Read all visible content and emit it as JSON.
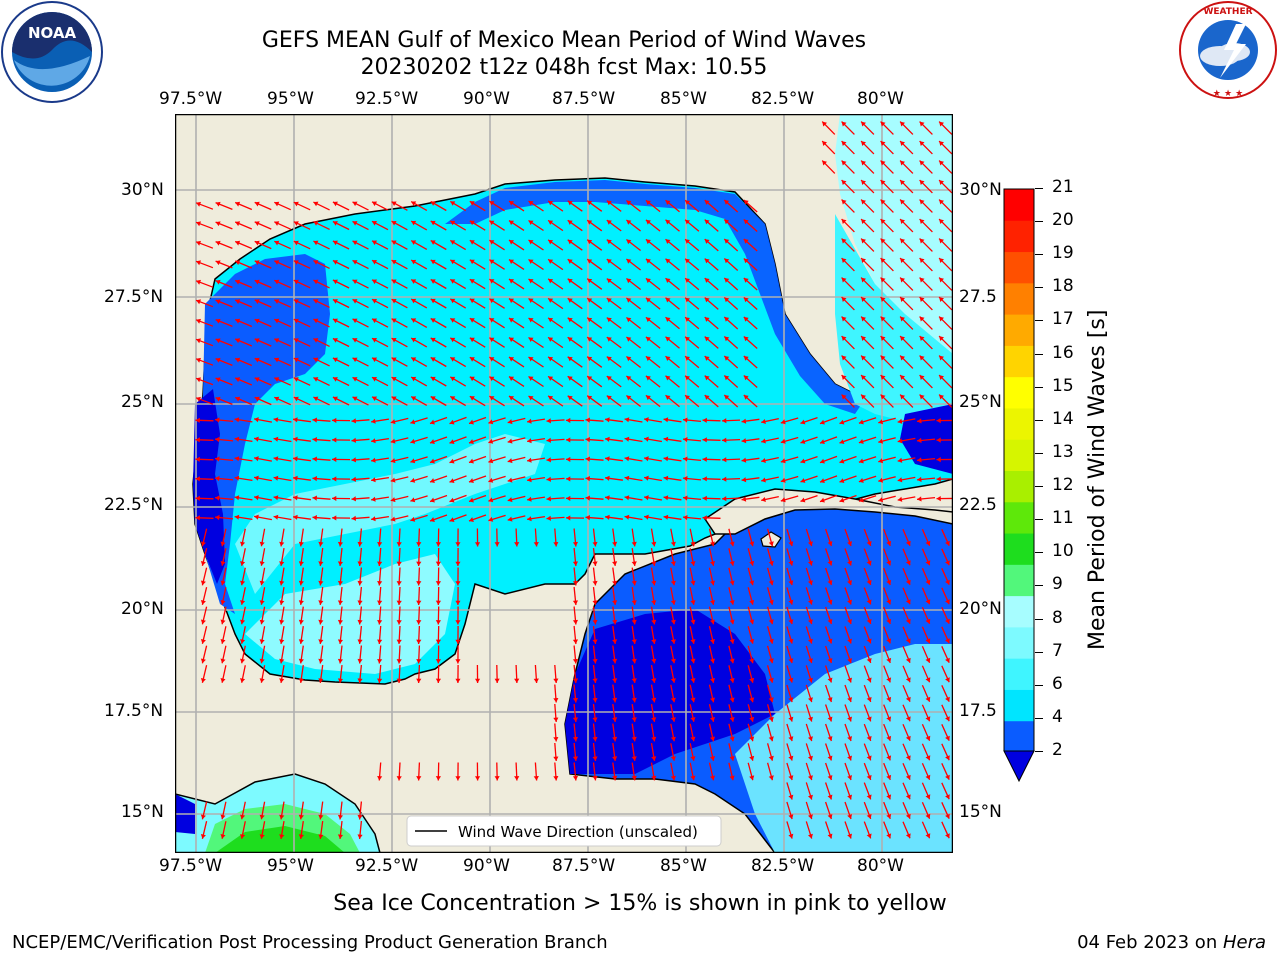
{
  "header": {
    "title_line1": "GEFS MEAN Gulf of Mexico Mean Period of Wind Waves",
    "title_line2": "20230202 t12z 048h fcst   Max: 10.55"
  },
  "logos": {
    "left": {
      "name": "NOAA",
      "ring_text": "NATIONAL OCEANIC AND ATMOSPHERIC ADMINISTRATION · U.S. DEPARTMENT OF COMMERCE",
      "icon": "noaa-logo"
    },
    "right": {
      "ring_text": "NATIONAL WEATHER SERVICE",
      "icon": "nws-logo"
    }
  },
  "map": {
    "lon_ticks": [
      "97.5°W",
      "95°W",
      "92.5°W",
      "90°W",
      "87.5°W",
      "85°W",
      "82.5°W",
      "80°W"
    ],
    "lat_ticks_left": [
      "30°N",
      "27.5°N",
      "25°N",
      "22.5°N",
      "20°N",
      "17.5°N",
      "15°N"
    ],
    "lat_ticks_right": [
      "30°N",
      "27.5",
      "25°N",
      "22.5",
      "20°N",
      "17.5",
      "15°N"
    ],
    "legend_label": "Wind Wave Direction (unscaled)",
    "colors": {
      "land": "#efecdc",
      "coast": "#000000",
      "arrow": "#ff0000",
      "grid": "#b0b0b0"
    }
  },
  "colorbar": {
    "label": "Mean Period of Wind Waves [s]",
    "ticks": [
      "2",
      "4",
      "6",
      "7",
      "8",
      "9",
      "10",
      "11",
      "12",
      "13",
      "14",
      "15",
      "16",
      "17",
      "18",
      "19",
      "20",
      "21"
    ],
    "colors": [
      "#0a5cff",
      "#00e5ff",
      "#3ff5ff",
      "#7dfaff",
      "#a7fdff",
      "#52f77b",
      "#1edd1e",
      "#5ee80a",
      "#a9ef00",
      "#d6f500",
      "#ecf500",
      "#ffff00",
      "#ffd400",
      "#ffaa00",
      "#ff8000",
      "#ff5000",
      "#ff2200",
      "#ff0000"
    ],
    "under_color": "#0000e0"
  },
  "footer": {
    "ice_note": "Sea Ice Concentration > 15% is shown in pink to yellow",
    "credit": "NCEP/EMC/Verification Post Processing Product Generation Branch",
    "date": "04 Feb 2023 on ",
    "host": "Hera"
  }
}
